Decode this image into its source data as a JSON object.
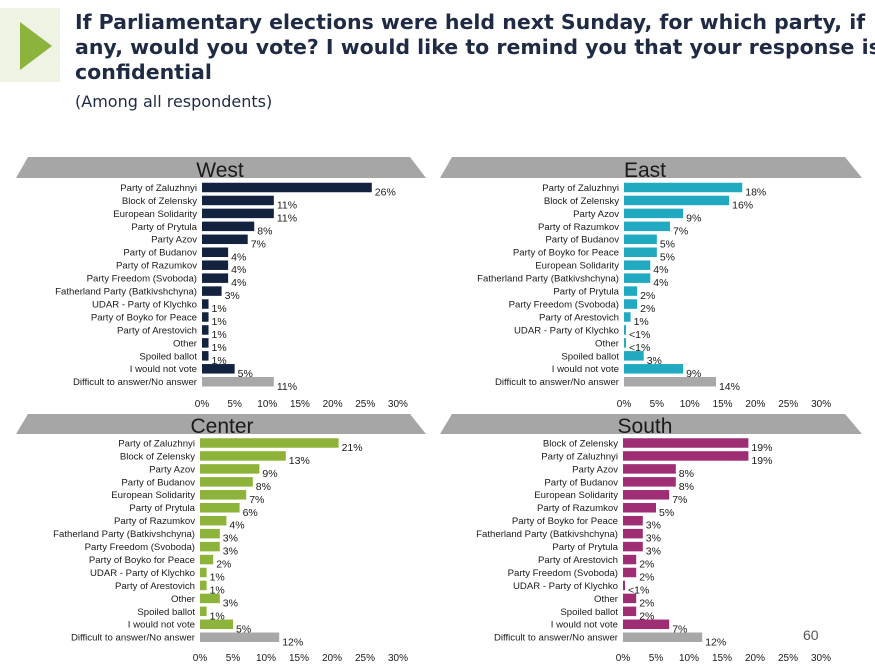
{
  "header": {
    "title_lines": [
      "If Parliamentary elections were held next Sunday, for which party, if",
      "any, would you vote? I would like to remind you that your response is",
      "confidential"
    ],
    "subtitle": "(Among all respondents)",
    "page_number": "60"
  },
  "colors": {
    "accent_arrow": "#8cb43c",
    "arrow_band": "#eef3e4",
    "region_band": "#a6a6a6",
    "west_bars": "#13233f",
    "east_bars": "#21a9c1",
    "center_bars": "#8db33a",
    "south_bars": "#9e2d73",
    "difficult_bar": "#a8a8a8"
  },
  "chart_data": [
    {
      "type": "bar",
      "orientation": "horizontal",
      "title": "West",
      "bar_color": "#13233f",
      "categories": [
        "Party of Zaluzhnyi",
        "Block of Zelensky",
        "European Solidarity",
        "Party of Prytula",
        "Party Azov",
        "Party of Budanov",
        "Party of Razumkov",
        "Party Freedom (Svoboda)",
        "Fatherland Party (Batkivshchyna)",
        "UDAR - Party of Klychko",
        "Party of Boyko for Peace",
        "Party of Arestovich",
        "Other",
        "Spoiled ballot",
        "I would not vote",
        "Difficult to answer/No answer"
      ],
      "values": [
        26,
        11,
        11,
        8,
        7,
        4,
        4,
        4,
        3,
        1,
        1,
        1,
        1,
        1,
        5,
        11
      ],
      "labels": [
        "26%",
        "11%",
        "11%",
        "8%",
        "7%",
        "4%",
        "4%",
        "4%",
        "3%",
        "1%",
        "1%",
        "1%",
        "1%",
        "1%",
        "5%",
        "11%"
      ],
      "xlim": [
        0,
        30
      ],
      "xticks": [
        "0%",
        "5%",
        "10%",
        "15%",
        "20%",
        "25%",
        "30%"
      ]
    },
    {
      "type": "bar",
      "orientation": "horizontal",
      "title": "East",
      "bar_color": "#21a9c1",
      "categories": [
        "Party of Zaluzhnyi",
        "Block of Zelensky",
        "Party Azov",
        "Party of Razumkov",
        "Party of Budanov",
        "Party of Boyko for Peace",
        "European Solidarity",
        "Fatherland Party (Batkivshchyna)",
        "Party of Prytula",
        "Party Freedom (Svoboda)",
        "Party of Arestovich",
        "UDAR - Party of Klychko",
        "Other",
        "Spoiled ballot",
        "I would not vote",
        "Difficult to answer/No answer"
      ],
      "values": [
        18,
        16,
        9,
        7,
        5,
        5,
        4,
        4,
        2,
        2,
        1,
        0.3,
        0.3,
        3,
        9,
        14
      ],
      "labels": [
        "18%",
        "16%",
        "9%",
        "7%",
        "5%",
        "5%",
        "4%",
        "4%",
        "2%",
        "2%",
        "1%",
        "<1%",
        "<1%",
        "3%",
        "9%",
        "14%"
      ],
      "xlim": [
        0,
        30
      ],
      "xticks": [
        "0%",
        "5%",
        "10%",
        "15%",
        "20%",
        "25%",
        "30%"
      ]
    },
    {
      "type": "bar",
      "orientation": "horizontal",
      "title": "Center",
      "bar_color": "#8db33a",
      "categories": [
        "Party of Zaluzhnyi",
        "Block of Zelensky",
        "Party Azov",
        "Party of Budanov",
        "European Solidarity",
        "Party of Prytula",
        "Party of Razumkov",
        "Fatherland Party (Batkivshchyna)",
        "Party Freedom (Svoboda)",
        "Party of Boyko for Peace",
        "UDAR - Party of Klychko",
        "Party of Arestovich",
        "Other",
        "Spoiled ballot",
        "I would not vote",
        "Difficult to answer/No answer"
      ],
      "values": [
        21,
        13,
        9,
        8,
        7,
        6,
        4,
        3,
        3,
        2,
        1,
        1,
        3,
        1,
        5,
        12
      ],
      "labels": [
        "21%",
        "13%",
        "9%",
        "8%",
        "7%",
        "6%",
        "4%",
        "3%",
        "3%",
        "2%",
        "1%",
        "1%",
        "3%",
        "1%",
        "5%",
        "12%"
      ],
      "xlim": [
        0,
        30
      ],
      "xticks": [
        "0%",
        "5%",
        "10%",
        "15%",
        "20%",
        "25%",
        "30%"
      ]
    },
    {
      "type": "bar",
      "orientation": "horizontal",
      "title": "South",
      "bar_color": "#9e2d73",
      "categories": [
        "Block of Zelensky",
        "Party of Zaluzhnyi",
        "Party Azov",
        "Party of Budanov",
        "European Solidarity",
        "Party of Razumkov",
        "Party of Boyko for Peace",
        "Fatherland Party (Batkivshchyna)",
        "Party of Prytula",
        "Party of Arestovich",
        "Party Freedom (Svoboda)",
        "UDAR - Party of Klychko",
        "Other",
        "Spoiled ballot",
        "I would not vote",
        "Difficult to answer/No answer"
      ],
      "values": [
        19,
        19,
        8,
        8,
        7,
        5,
        3,
        3,
        3,
        2,
        2,
        0.3,
        2,
        2,
        7,
        12
      ],
      "labels": [
        "19%",
        "19%",
        "8%",
        "8%",
        "7%",
        "5%",
        "3%",
        "3%",
        "3%",
        "2%",
        "2%",
        "<1%",
        "2%",
        "2%",
        "7%",
        "12%"
      ],
      "xlim": [
        0,
        30
      ],
      "xticks": [
        "0%",
        "5%",
        "10%",
        "15%",
        "20%",
        "25%",
        "30%"
      ]
    }
  ]
}
